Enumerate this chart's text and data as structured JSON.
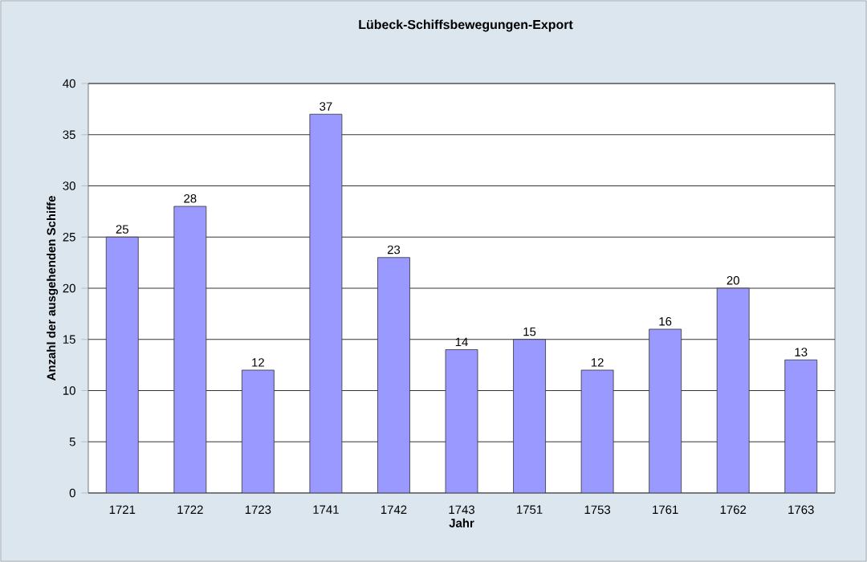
{
  "chart_data": {
    "type": "bar",
    "title": "Lübeck-Schiffsbewegungen-Export",
    "xlabel": "Jahr",
    "ylabel": "Anzahl der ausgehenden Schiffe",
    "categories": [
      "1721",
      "1722",
      "1723",
      "1741",
      "1742",
      "1743",
      "1751",
      "1753",
      "1761",
      "1762",
      "1763"
    ],
    "values": [
      25,
      28,
      12,
      37,
      23,
      14,
      15,
      12,
      16,
      20,
      13
    ],
    "color": "#9999ff",
    "ylim": [
      0,
      40
    ],
    "yticks": [
      0,
      5,
      10,
      15,
      20,
      25,
      30,
      35,
      40
    ],
    "grid": "y",
    "data_labels": true
  }
}
